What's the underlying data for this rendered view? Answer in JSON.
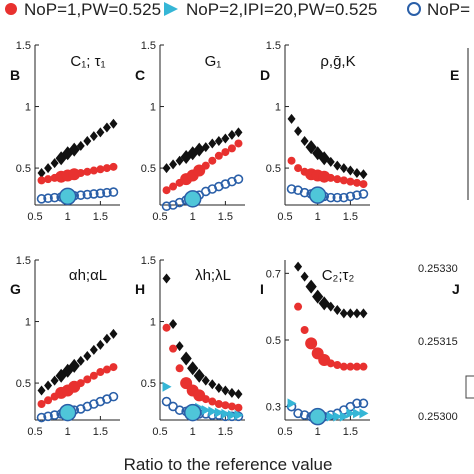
{
  "legend": [
    {
      "label": "NoP=1,PW=0.525",
      "marker": "circle-filled",
      "color": "#e8312f"
    },
    {
      "label": "NoP=2,IPI=20,PW=0.525",
      "marker": "triangle-filled",
      "color": "#35b6d6"
    },
    {
      "label": "NoP=",
      "marker": "circle-open",
      "color": "#2a5fa8"
    }
  ],
  "xlabel": "Ratio to the reference value",
  "colors": {
    "black_series": "#111111",
    "red_series": "#e8312f",
    "blue_series": "#2a5fa8",
    "cyan_series": "#35b6d6",
    "ref_fill": "#4fc6d9"
  },
  "chart_data": [
    {
      "panel": "B",
      "title": "C₁; τ₁",
      "type": "scatter",
      "ylim": [
        0.2,
        1.5
      ],
      "yticks": [
        "0.5",
        "1",
        "1.5"
      ],
      "xlim": [
        0.5,
        1.8
      ],
      "xticks": [
        "0.5",
        "1",
        "1.5"
      ],
      "series": [
        {
          "marker": "diamond",
          "x": [
            0.6,
            0.7,
            0.8,
            0.9,
            1.0,
            1.1,
            1.2,
            1.3,
            1.4,
            1.5,
            1.6,
            1.7
          ],
          "y": [
            0.46,
            0.5,
            0.54,
            0.58,
            0.62,
            0.65,
            0.68,
            0.72,
            0.76,
            0.79,
            0.83,
            0.86
          ]
        },
        {
          "marker": "circle-filled",
          "x": [
            0.6,
            0.7,
            0.8,
            0.9,
            1.0,
            1.1,
            1.2,
            1.3,
            1.4,
            1.5,
            1.6,
            1.7
          ],
          "y": [
            0.4,
            0.41,
            0.42,
            0.43,
            0.44,
            0.45,
            0.46,
            0.47,
            0.48,
            0.49,
            0.5,
            0.51
          ]
        },
        {
          "marker": "circle-open",
          "x": [
            0.6,
            0.7,
            0.8,
            0.9,
            1.0,
            1.1,
            1.2,
            1.3,
            1.4,
            1.5,
            1.6,
            1.7
          ],
          "y": [
            0.25,
            0.255,
            0.26,
            0.265,
            0.27,
            0.275,
            0.28,
            0.285,
            0.29,
            0.295,
            0.3,
            0.305
          ]
        }
      ],
      "reference": {
        "x": 1.0,
        "y": 0.27
      }
    },
    {
      "panel": "C",
      "title": "G₁",
      "type": "scatter",
      "ylim": [
        0.2,
        1.5
      ],
      "yticks": [
        "0.5",
        "1",
        "1.5"
      ],
      "xlim": [
        0.5,
        1.8
      ],
      "xticks": [
        "0.5",
        "1",
        "1.5"
      ],
      "series": [
        {
          "marker": "diamond",
          "x": [
            0.6,
            0.7,
            0.8,
            0.9,
            1.0,
            1.1,
            1.2,
            1.3,
            1.4,
            1.5,
            1.6,
            1.7
          ],
          "y": [
            0.5,
            0.53,
            0.56,
            0.59,
            0.62,
            0.65,
            0.67,
            0.7,
            0.72,
            0.74,
            0.77,
            0.79
          ]
        },
        {
          "marker": "circle-filled",
          "x": [
            0.6,
            0.7,
            0.8,
            0.9,
            1.0,
            1.1,
            1.2,
            1.3,
            1.4,
            1.5,
            1.6,
            1.7
          ],
          "y": [
            0.32,
            0.35,
            0.38,
            0.41,
            0.44,
            0.48,
            0.52,
            0.56,
            0.6,
            0.63,
            0.66,
            0.7
          ]
        },
        {
          "marker": "circle-open",
          "x": [
            0.6,
            0.7,
            0.8,
            0.9,
            1.0,
            1.1,
            1.2,
            1.3,
            1.4,
            1.5,
            1.6,
            1.7
          ],
          "y": [
            0.19,
            0.2,
            0.22,
            0.24,
            0.26,
            0.28,
            0.31,
            0.33,
            0.35,
            0.37,
            0.39,
            0.41
          ]
        }
      ],
      "reference": {
        "x": 1.0,
        "y": 0.25
      }
    },
    {
      "panel": "D",
      "title": "ρ,ḡ,K",
      "type": "scatter",
      "ylim": [
        0.2,
        1.5
      ],
      "yticks": [
        "0.5",
        "1",
        "1.5"
      ],
      "xlim": [
        0.5,
        1.8
      ],
      "xticks": [
        "0.5",
        "1",
        "1.5"
      ],
      "series": [
        {
          "marker": "diamond",
          "x": [
            0.6,
            0.7,
            0.8,
            0.9,
            1.0,
            1.1,
            1.2,
            1.3,
            1.4,
            1.5,
            1.6,
            1.7
          ],
          "y": [
            0.9,
            0.8,
            0.72,
            0.67,
            0.62,
            0.58,
            0.55,
            0.52,
            0.5,
            0.48,
            0.46,
            0.45
          ]
        },
        {
          "marker": "circle-filled",
          "x": [
            0.6,
            0.7,
            0.8,
            0.9,
            1.0,
            1.1,
            1.2,
            1.3,
            1.4,
            1.5,
            1.6,
            1.7
          ],
          "y": [
            0.56,
            0.5,
            0.47,
            0.45,
            0.44,
            0.43,
            0.42,
            0.41,
            0.4,
            0.39,
            0.38,
            0.37
          ]
        },
        {
          "marker": "circle-open",
          "x": [
            0.6,
            0.7,
            0.8,
            0.9,
            1.0,
            1.1,
            1.2,
            1.3,
            1.4,
            1.5,
            1.6,
            1.7
          ],
          "y": [
            0.33,
            0.32,
            0.3,
            0.29,
            0.28,
            0.27,
            0.26,
            0.26,
            0.26,
            0.27,
            0.28,
            0.29
          ]
        }
      ],
      "reference": {
        "x": 1.0,
        "y": 0.28
      }
    },
    {
      "panel": "G",
      "title": "αh;αL",
      "type": "scatter",
      "ylim": [
        0.2,
        1.5
      ],
      "yticks": [
        "0.5",
        "1",
        "1.5"
      ],
      "xlim": [
        0.5,
        1.8
      ],
      "xticks": [
        "0.5",
        "1",
        "1.5"
      ],
      "series": [
        {
          "marker": "diamond",
          "x": [
            0.6,
            0.7,
            0.8,
            0.9,
            1.0,
            1.1,
            1.2,
            1.3,
            1.4,
            1.5,
            1.6,
            1.7
          ],
          "y": [
            0.44,
            0.48,
            0.52,
            0.56,
            0.6,
            0.64,
            0.68,
            0.72,
            0.77,
            0.81,
            0.86,
            0.9
          ]
        },
        {
          "marker": "circle-filled",
          "x": [
            0.6,
            0.7,
            0.8,
            0.9,
            1.0,
            1.1,
            1.2,
            1.3,
            1.4,
            1.5,
            1.6,
            1.7
          ],
          "y": [
            0.33,
            0.36,
            0.39,
            0.42,
            0.44,
            0.47,
            0.5,
            0.53,
            0.56,
            0.59,
            0.61,
            0.63
          ]
        },
        {
          "marker": "circle-open",
          "x": [
            0.6,
            0.7,
            0.8,
            0.9,
            1.0,
            1.1,
            1.2,
            1.3,
            1.4,
            1.5,
            1.6,
            1.7
          ],
          "y": [
            0.22,
            0.23,
            0.24,
            0.25,
            0.26,
            0.28,
            0.29,
            0.31,
            0.33,
            0.35,
            0.37,
            0.39
          ]
        }
      ],
      "reference": {
        "x": 1.0,
        "y": 0.26
      }
    },
    {
      "panel": "H",
      "title": "λh;λL",
      "type": "scatter",
      "ylim": [
        0.2,
        1.5
      ],
      "yticks": [
        "0.5",
        "1",
        "1.5"
      ],
      "xlim": [
        0.5,
        1.8
      ],
      "xticks": [
        "0.5",
        "1",
        "1.5"
      ],
      "series": [
        {
          "marker": "diamond",
          "x": [
            0.6,
            0.7,
            0.8,
            0.9,
            1.0,
            1.1,
            1.2,
            1.3,
            1.4,
            1.5,
            1.6,
            1.7
          ],
          "y": [
            1.35,
            0.98,
            0.8,
            0.7,
            0.62,
            0.56,
            0.52,
            0.49,
            0.46,
            0.44,
            0.42,
            0.41
          ]
        },
        {
          "marker": "circle-filled",
          "x": [
            0.6,
            0.7,
            0.8,
            0.9,
            1.0,
            1.1,
            1.2,
            1.3,
            1.4,
            1.5,
            1.6,
            1.7
          ],
          "y": [
            0.95,
            0.78,
            0.62,
            0.5,
            0.44,
            0.4,
            0.37,
            0.35,
            0.33,
            0.32,
            0.31,
            0.3
          ]
        },
        {
          "marker": "circle-open",
          "x": [
            0.6,
            0.7,
            0.8,
            0.9,
            1.0,
            1.1,
            1.2,
            1.3,
            1.4,
            1.5,
            1.6,
            1.7
          ],
          "y": [
            0.35,
            0.31,
            0.28,
            0.27,
            0.26,
            0.25,
            0.25,
            0.24,
            0.24,
            0.23,
            0.23,
            0.23
          ]
        },
        {
          "marker": "triangle",
          "x": [
            0.6,
            1.1,
            1.2,
            1.3,
            1.4,
            1.5,
            1.6,
            1.7
          ],
          "y": [
            0.47,
            0.3,
            0.28,
            0.27,
            0.26,
            0.25,
            0.24,
            0.24
          ]
        }
      ],
      "reference": {
        "x": 1.0,
        "y": 0.26
      }
    },
    {
      "panel": "I",
      "title": "C₂;τ₂",
      "type": "scatter",
      "ylim": [
        0.26,
        0.74
      ],
      "yticks": [
        "0.3",
        "0.5",
        "0.7"
      ],
      "xlim": [
        0.5,
        1.8
      ],
      "xticks": [
        "0.5",
        "1",
        "1.5"
      ],
      "series": [
        {
          "marker": "diamond",
          "x": [
            0.7,
            0.8,
            0.9,
            1.0,
            1.1,
            1.2,
            1.3,
            1.4,
            1.5,
            1.6,
            1.7
          ],
          "y": [
            0.72,
            0.69,
            0.66,
            0.63,
            0.61,
            0.6,
            0.59,
            0.58,
            0.58,
            0.58,
            0.58
          ]
        },
        {
          "marker": "circle-filled",
          "x": [
            0.7,
            0.8,
            0.9,
            1.0,
            1.1,
            1.2,
            1.3,
            1.4,
            1.5,
            1.6,
            1.7
          ],
          "y": [
            0.6,
            0.53,
            0.49,
            0.46,
            0.44,
            0.43,
            0.425,
            0.42,
            0.42,
            0.42,
            0.42
          ]
        },
        {
          "marker": "circle-open",
          "x": [
            0.6,
            0.7,
            0.8,
            0.9,
            1.0,
            1.1,
            1.2,
            1.3,
            1.4,
            1.5,
            1.6,
            1.7
          ],
          "y": [
            0.3,
            0.28,
            0.275,
            0.27,
            0.27,
            0.27,
            0.275,
            0.28,
            0.29,
            0.3,
            0.31,
            0.31
          ]
        },
        {
          "marker": "triangle",
          "x": [
            0.6,
            1.1,
            1.2,
            1.3,
            1.4,
            1.5,
            1.6,
            1.7
          ],
          "y": [
            0.31,
            0.27,
            0.27,
            0.27,
            0.27,
            0.28,
            0.28,
            0.28
          ]
        }
      ],
      "reference": {
        "x": 1.0,
        "y": 0.27
      }
    }
  ],
  "partial_panels": [
    {
      "panel": "E"
    },
    {
      "panel": "J",
      "yticks": [
        "0.25330",
        "0.25315",
        "0.25300"
      ]
    }
  ]
}
